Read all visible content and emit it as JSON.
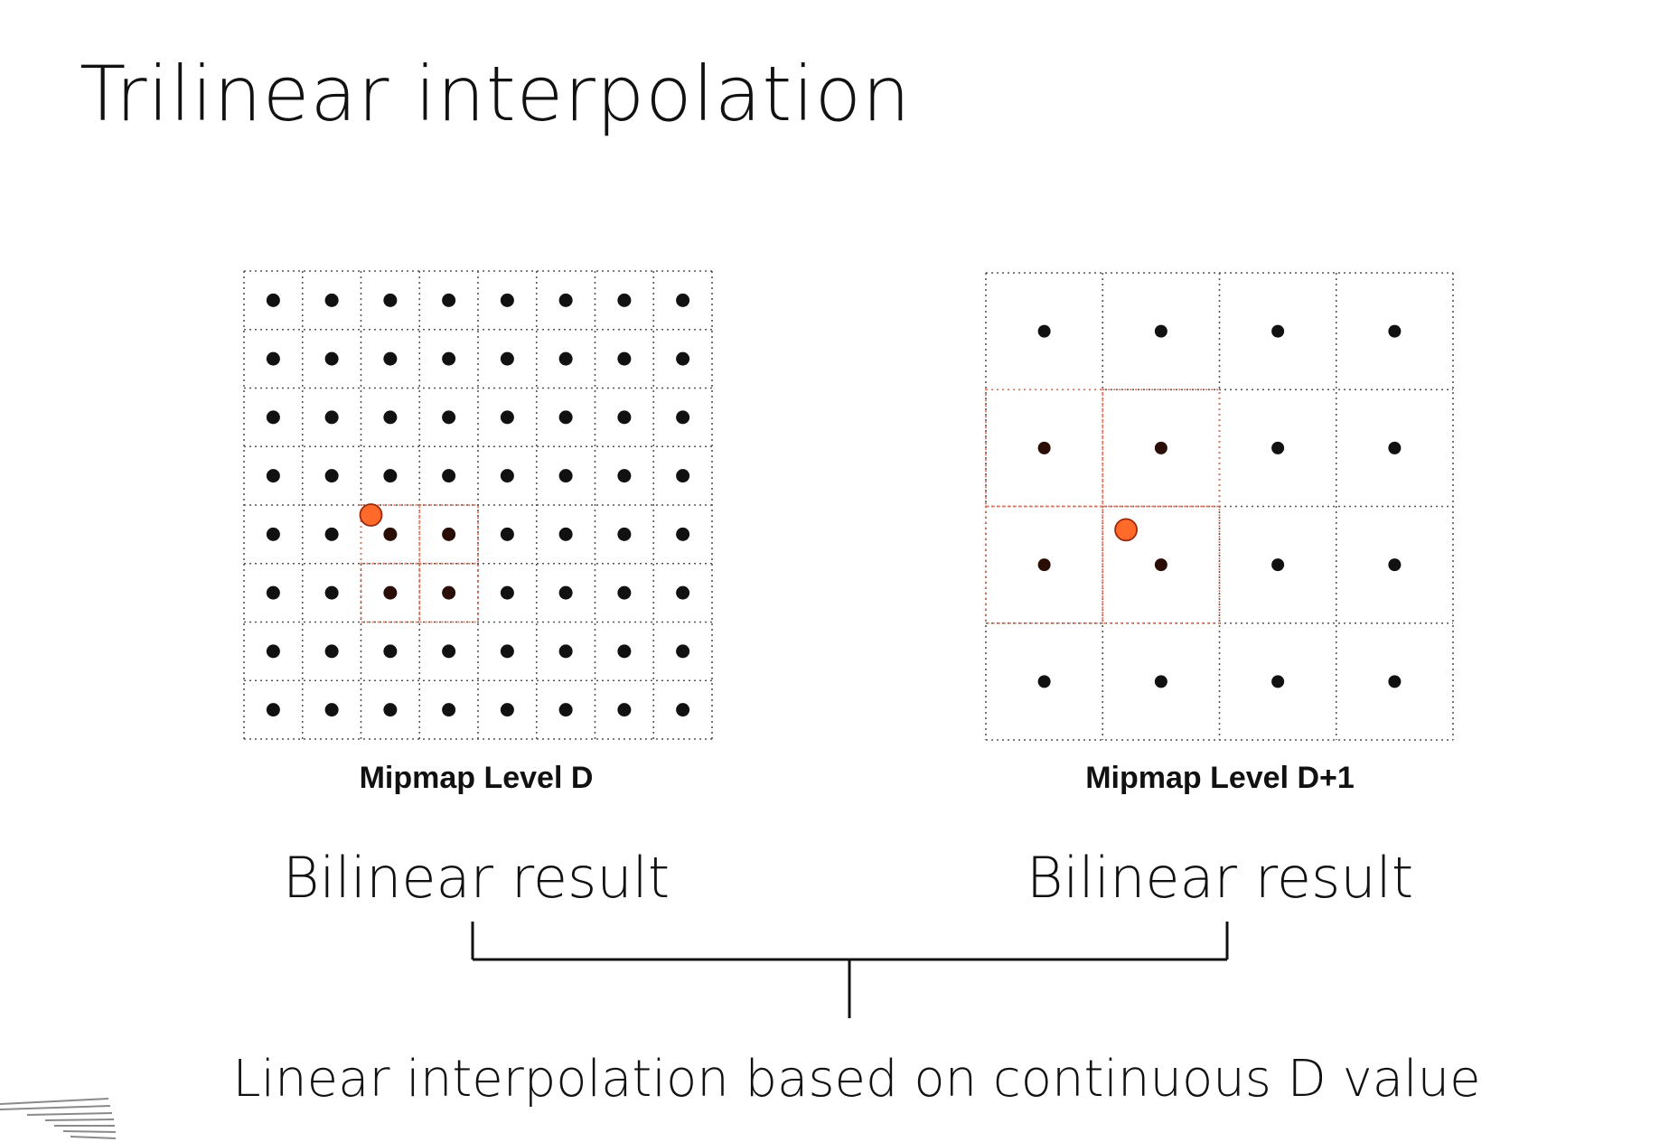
{
  "slide": {
    "title": "Trilinear interpolation",
    "accent_color": "#ff6a2b",
    "sample_color": "#111111",
    "highlight_line_color": "#e0735a",
    "grid_line_color": "#555555"
  },
  "grids": [
    {
      "id": "level-d",
      "caption": "Mipmap Level D",
      "cells": 8,
      "highlight_cells": [
        [
          2,
          4
        ],
        [
          3,
          4
        ],
        [
          2,
          5
        ],
        [
          3,
          5
        ]
      ],
      "sample_point": [
        2.17,
        4.17
      ]
    },
    {
      "id": "level-d1",
      "caption": "Mipmap Level D+1",
      "cells": 4,
      "highlight_cells": [
        [
          0,
          1
        ],
        [
          1,
          1
        ],
        [
          0,
          2
        ],
        [
          1,
          2
        ]
      ],
      "sample_point": [
        1.2,
        2.2
      ]
    }
  ],
  "labels": {
    "left_result": "Bilinear result",
    "right_result": "Bilinear result",
    "combination": "Linear interpolation based on continuous D value"
  }
}
